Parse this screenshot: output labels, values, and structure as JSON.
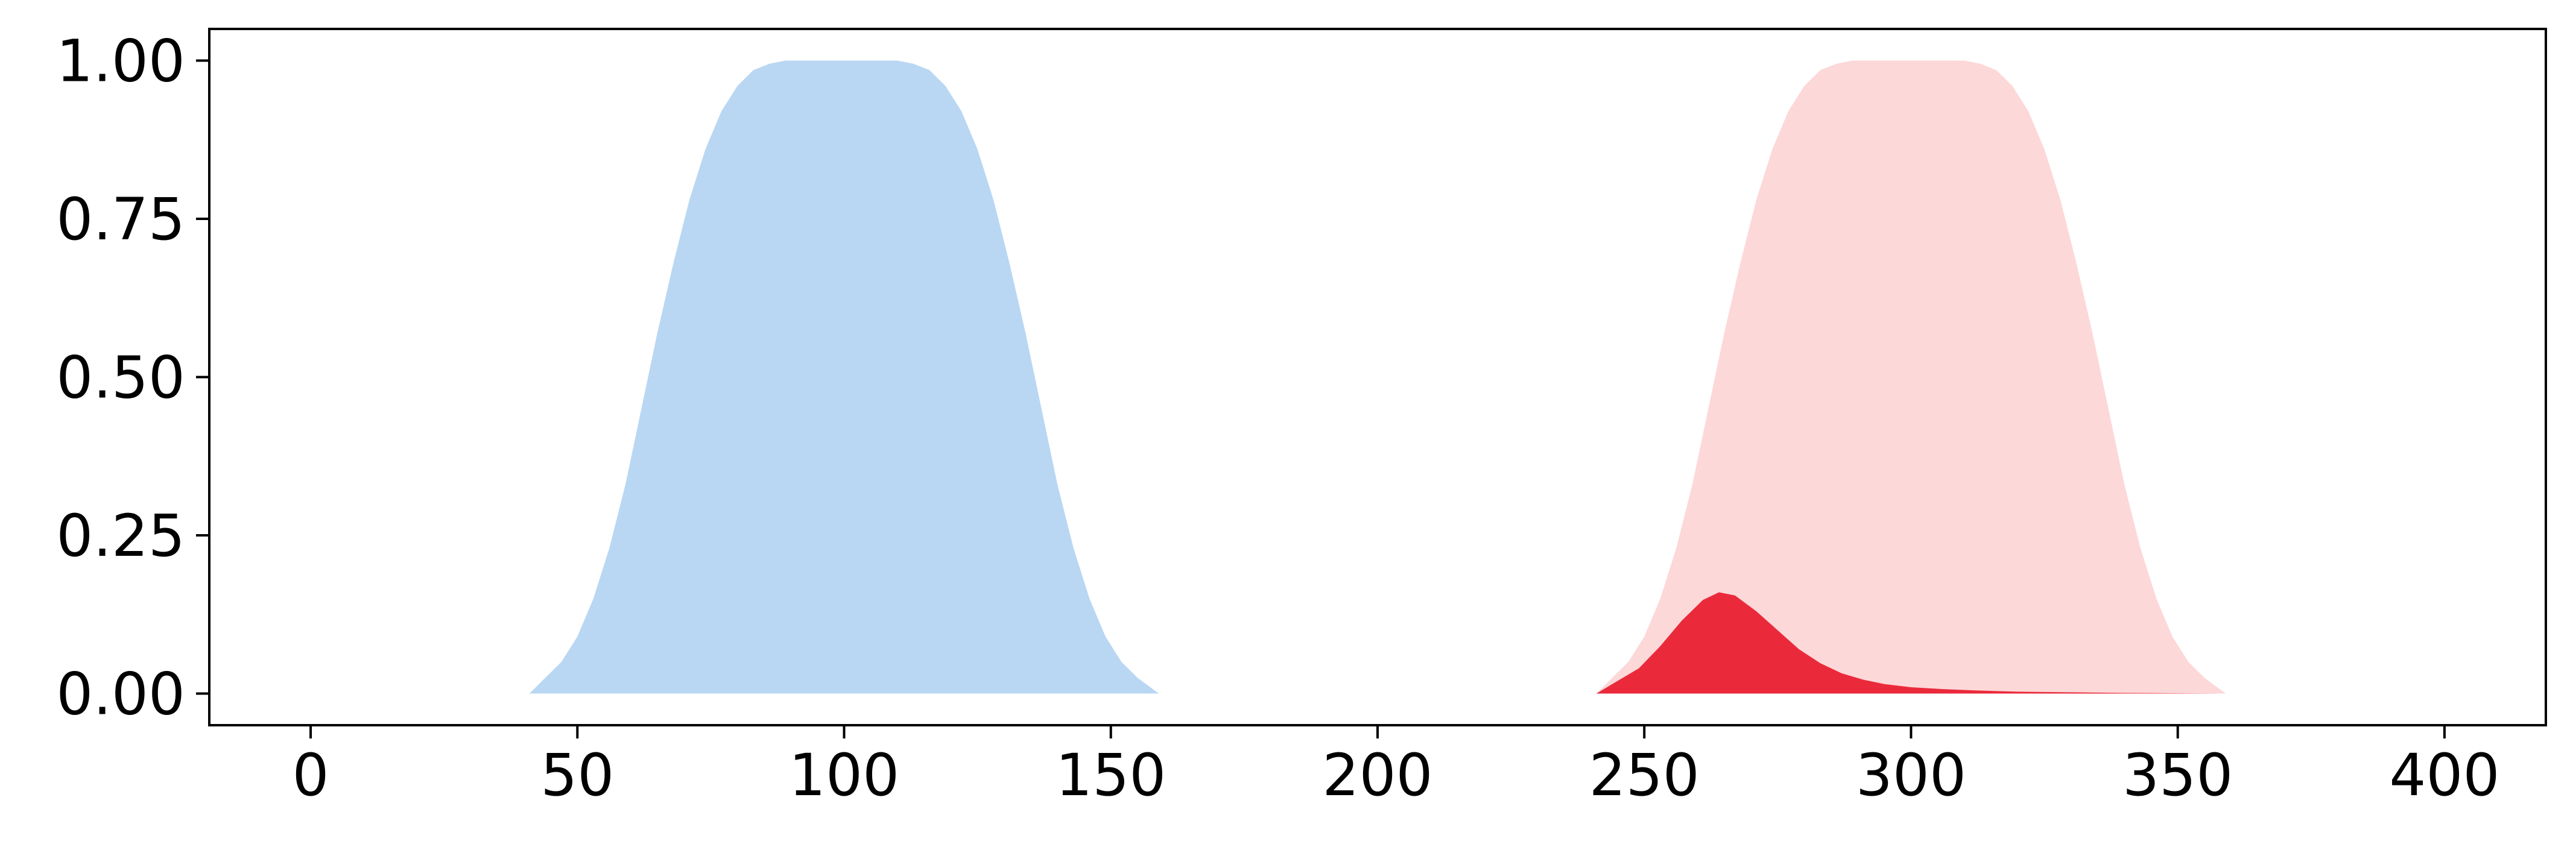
{
  "chart_data": {
    "type": "area",
    "title": "",
    "xlabel": "",
    "ylabel": "",
    "xlim": [
      -19,
      419
    ],
    "ylim": [
      -0.05,
      1.05
    ],
    "grid": false,
    "legend": "none",
    "x_ticks": [
      0,
      50,
      100,
      150,
      200,
      250,
      300,
      350,
      400
    ],
    "x_tick_labels": [
      "0",
      "50",
      "100",
      "150",
      "200",
      "250",
      "300",
      "350",
      "400"
    ],
    "y_ticks": [
      0.0,
      0.25,
      0.5,
      0.75,
      1.0
    ],
    "y_tick_labels": [
      "0.00",
      "0.25",
      "0.50",
      "0.75",
      "1.00"
    ],
    "series": [
      {
        "color": "#b9d7f3",
        "x": [
          41,
          44,
          47,
          50,
          53,
          56,
          59,
          62,
          65,
          68,
          71,
          74,
          77,
          80,
          83,
          86,
          89,
          92,
          95,
          98,
          101,
          104,
          107,
          110,
          113,
          116,
          119,
          122,
          125,
          128,
          131,
          134,
          137,
          140,
          143,
          146,
          149,
          152,
          155,
          159
        ],
        "y": [
          0.0,
          0.025,
          0.05,
          0.09,
          0.15,
          0.23,
          0.33,
          0.45,
          0.57,
          0.68,
          0.78,
          0.86,
          0.92,
          0.96,
          0.985,
          0.995,
          1.0,
          1.0,
          1.0,
          1.0,
          1.0,
          1.0,
          1.0,
          1.0,
          0.995,
          0.985,
          0.96,
          0.92,
          0.86,
          0.78,
          0.68,
          0.57,
          0.45,
          0.33,
          0.23,
          0.15,
          0.09,
          0.05,
          0.025,
          0.0
        ]
      },
      {
        "color": "#fdd8d8",
        "x": [
          241,
          244,
          247,
          250,
          253,
          256,
          259,
          262,
          265,
          268,
          271,
          274,
          277,
          280,
          283,
          286,
          289,
          292,
          295,
          298,
          301,
          304,
          307,
          310,
          313,
          316,
          319,
          322,
          325,
          328,
          331,
          334,
          337,
          340,
          343,
          346,
          349,
          352,
          355,
          359
        ],
        "y": [
          0.0,
          0.025,
          0.05,
          0.09,
          0.15,
          0.23,
          0.33,
          0.45,
          0.57,
          0.68,
          0.78,
          0.86,
          0.92,
          0.96,
          0.985,
          0.995,
          1.0,
          1.0,
          1.0,
          1.0,
          1.0,
          1.0,
          1.0,
          1.0,
          0.995,
          0.985,
          0.96,
          0.92,
          0.86,
          0.78,
          0.68,
          0.57,
          0.45,
          0.33,
          0.23,
          0.15,
          0.09,
          0.05,
          0.025,
          0.0
        ]
      },
      {
        "color": "#ea2a3b",
        "x": [
          241,
          245,
          249,
          253,
          257,
          261,
          264,
          267,
          271,
          275,
          279,
          283,
          287,
          291,
          295,
          300,
          306,
          312,
          320,
          330,
          340,
          350,
          359
        ],
        "y": [
          0.0,
          0.02,
          0.04,
          0.075,
          0.115,
          0.148,
          0.16,
          0.155,
          0.13,
          0.1,
          0.07,
          0.048,
          0.032,
          0.022,
          0.015,
          0.01,
          0.007,
          0.005,
          0.003,
          0.002,
          0.001,
          0.0005,
          0.0
        ]
      }
    ]
  }
}
